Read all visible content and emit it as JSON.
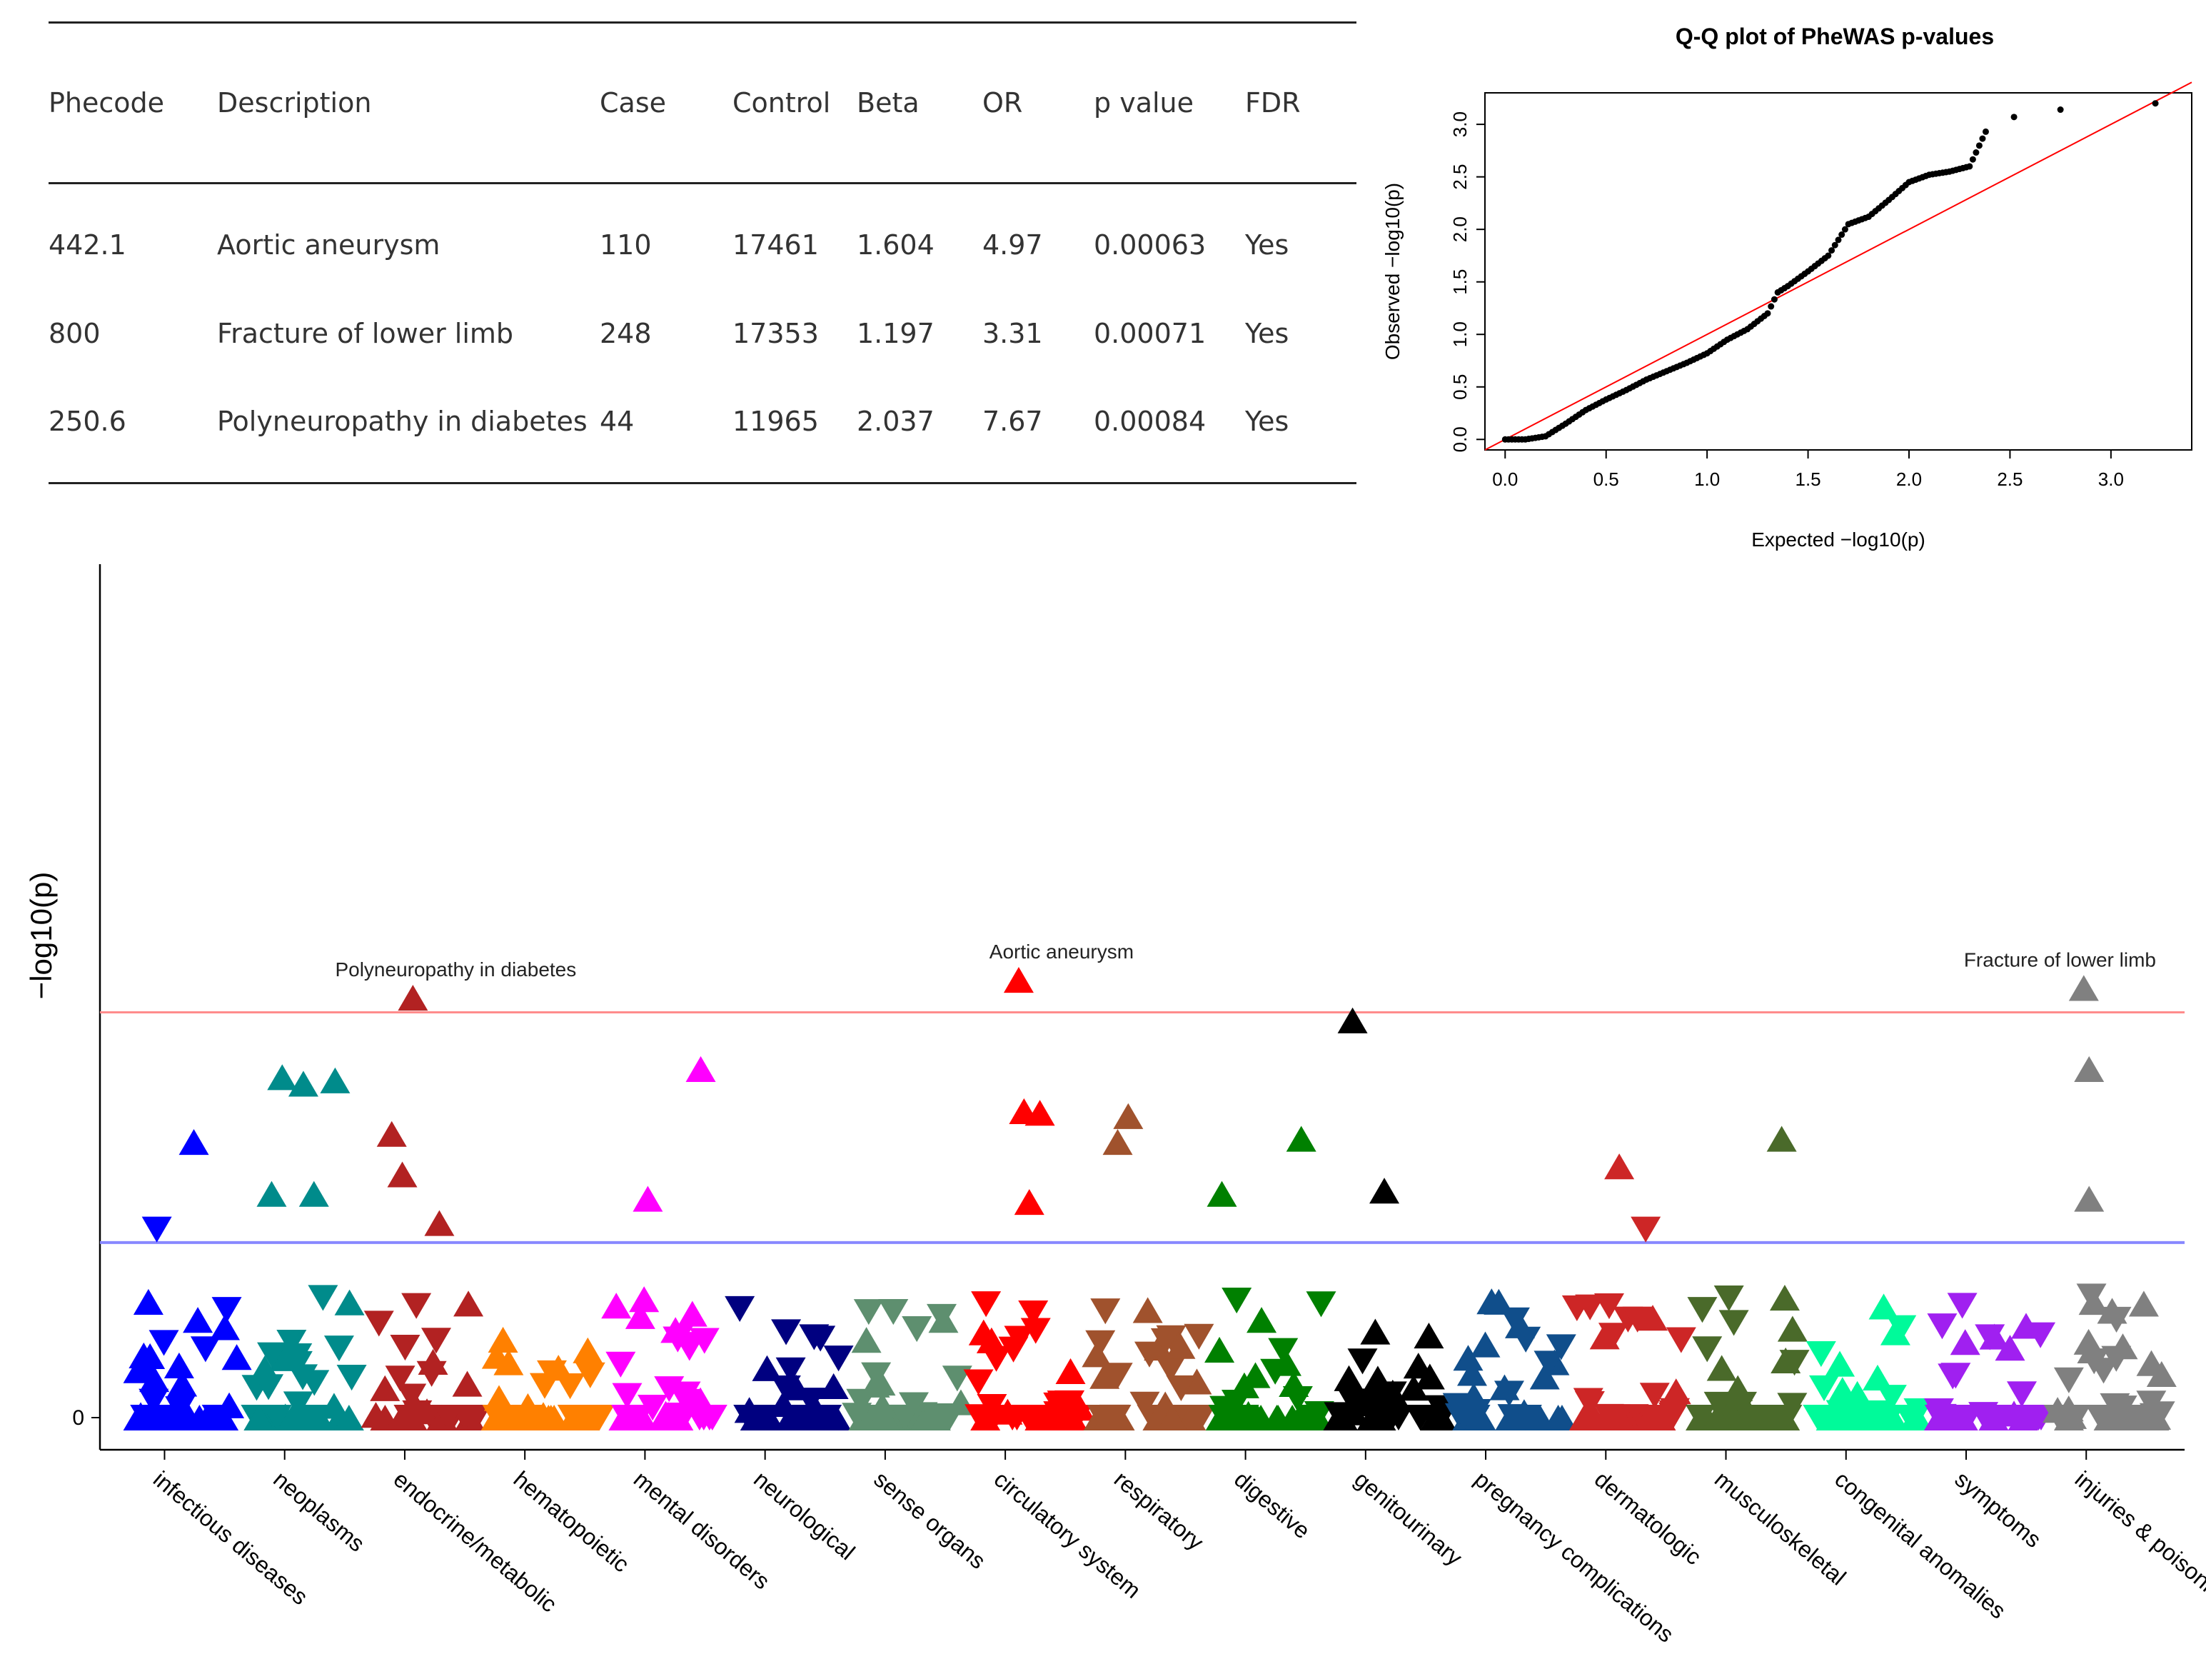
{
  "table": {
    "columns": [
      "Phecode",
      "Description",
      "Case",
      "Control",
      "Beta",
      "OR",
      "p value",
      "FDR"
    ],
    "rows": [
      {
        "phecode": "442.1",
        "description": "Aortic aneurysm",
        "case": "110",
        "control": "17461",
        "beta": "1.604",
        "or": "4.97",
        "p_value": "0.00063",
        "fdr": "Yes"
      },
      {
        "phecode": "800",
        "description": "Fracture of lower limb",
        "case": "248",
        "control": "17353",
        "beta": "1.197",
        "or": "3.31",
        "p_value": "0.00071",
        "fdr": "Yes"
      },
      {
        "phecode": "250.6",
        "description": "Polyneuropathy in diabetes",
        "case": "44",
        "control": "11965",
        "beta": "2.037",
        "or": "7.67",
        "p_value": "0.00084",
        "fdr": "Yes"
      }
    ]
  },
  "chart_data": [
    {
      "type": "scatter",
      "title": "Q-Q plot of PheWAS p-values",
      "xlabel": "Expected −log10(p)",
      "ylabel": "Observed −log10(p)",
      "xlim": [
        -0.1,
        3.4
      ],
      "ylim": [
        -0.1,
        3.3
      ],
      "xticks": [
        "0.0",
        "0.5",
        "1.0",
        "1.5",
        "2.0",
        "2.5",
        "3.0"
      ],
      "yticks": [
        "0.0",
        "0.5",
        "1.0",
        "1.5",
        "2.0",
        "2.5",
        "3.0"
      ],
      "reference_line": {
        "slope": 1,
        "intercept": 0,
        "color": "#ff0000"
      },
      "x": [
        0,
        0.1,
        0.2,
        0.3,
        0.4,
        0.5,
        0.6,
        0.7,
        0.8,
        0.9,
        1.0,
        1.1,
        1.2,
        1.3,
        1.35,
        1.4,
        1.5,
        1.6,
        1.7,
        1.8,
        1.9,
        2.0,
        2.1,
        2.2,
        2.3,
        2.38,
        2.52,
        2.75,
        3.22
      ],
      "y": [
        0,
        0,
        0.03,
        0.15,
        0.28,
        0.38,
        0.47,
        0.57,
        0.65,
        0.73,
        0.82,
        0.95,
        1.05,
        1.2,
        1.4,
        1.46,
        1.6,
        1.75,
        2.05,
        2.12,
        2.28,
        2.45,
        2.52,
        2.55,
        2.6,
        2.93,
        3.07,
        3.14,
        3.2
      ],
      "marker_color": "#000000"
    },
    {
      "type": "scatter",
      "subtype": "manhattan",
      "xlabel": "",
      "ylabel": "−log10(p)",
      "ylim": [
        0,
        5
      ],
      "yticks": [
        "0"
      ],
      "thresholds": [
        {
          "name": "fdr",
          "y": 2.5,
          "color": "#ff8c8c"
        },
        {
          "name": "nominal",
          "y": 1.08,
          "color": "#8888ff"
        }
      ],
      "categories": [
        {
          "name": "infectious diseases",
          "color": "#0000ff"
        },
        {
          "name": "neoplasms",
          "color": "#008b8b"
        },
        {
          "name": "endocrine/metabolic",
          "color": "#b22222"
        },
        {
          "name": "hematopoietic",
          "color": "#ff8000"
        },
        {
          "name": "mental disorders",
          "color": "#ff00ff"
        },
        {
          "name": "neurological",
          "color": "#000080"
        },
        {
          "name": "sense organs",
          "color": "#5e8f6f"
        },
        {
          "name": "circulatory system",
          "color": "#ff0000"
        },
        {
          "name": "respiratory",
          "color": "#a0522d"
        },
        {
          "name": "digestive",
          "color": "#008000"
        },
        {
          "name": "genitourinary",
          "color": "#000000"
        },
        {
          "name": "pregnancy complications",
          "color": "#104e8b"
        },
        {
          "name": "dermatologic",
          "color": "#cd2626"
        },
        {
          "name": "musculoskeletal",
          "color": "#4a6a2a"
        },
        {
          "name": "congenital anomalies",
          "color": "#00fa9a"
        },
        {
          "name": "symptoms",
          "color": "#a020f0"
        },
        {
          "name": "injuries & poisonings",
          "color": "#808080"
        }
      ],
      "annotations": [
        {
          "label": "Polyneuropathy in diabetes",
          "category": "endocrine/metabolic",
          "y": 2.59
        },
        {
          "label": "Aortic aneurysm",
          "category": "circulatory system",
          "y": 2.7
        },
        {
          "label": "Fracture of lower limb",
          "category": "injuries & poisonings",
          "y": 2.65
        }
      ],
      "highlighted_points": [
        {
          "category": "infectious diseases",
          "x": 0.2,
          "y": 1.16,
          "dir": "down"
        },
        {
          "category": "infectious diseases",
          "x": 0.55,
          "y": 1.7,
          "dir": "up"
        },
        {
          "category": "neoplasms",
          "x": 0.25,
          "y": 2.1,
          "dir": "up"
        },
        {
          "category": "neoplasms",
          "x": 0.45,
          "y": 2.06,
          "dir": "up"
        },
        {
          "category": "neoplasms",
          "x": 0.75,
          "y": 2.08,
          "dir": "up"
        },
        {
          "category": "neoplasms",
          "x": 0.15,
          "y": 1.38,
          "dir": "up"
        },
        {
          "category": "neoplasms",
          "x": 0.55,
          "y": 1.38,
          "dir": "up"
        },
        {
          "category": "endocrine/metabolic",
          "x": 0.35,
          "y": 2.59,
          "dir": "up"
        },
        {
          "category": "endocrine/metabolic",
          "x": 0.15,
          "y": 1.75,
          "dir": "up"
        },
        {
          "category": "endocrine/metabolic",
          "x": 0.25,
          "y": 1.5,
          "dir": "up"
        },
        {
          "category": "endocrine/metabolic",
          "x": 0.6,
          "y": 1.2,
          "dir": "up"
        },
        {
          "category": "mental disorders",
          "x": 0.8,
          "y": 2.15,
          "dir": "up"
        },
        {
          "category": "mental disorders",
          "x": 0.3,
          "y": 1.35,
          "dir": "up"
        },
        {
          "category": "circulatory system",
          "x": 0.4,
          "y": 2.7,
          "dir": "up"
        },
        {
          "category": "circulatory system",
          "x": 0.6,
          "y": 1.88,
          "dir": "up"
        },
        {
          "category": "circulatory system",
          "x": 0.45,
          "y": 1.89,
          "dir": "up"
        },
        {
          "category": "circulatory system",
          "x": 0.5,
          "y": 1.33,
          "dir": "up"
        },
        {
          "category": "respiratory",
          "x": 0.3,
          "y": 1.86,
          "dir": "up"
        },
        {
          "category": "respiratory",
          "x": 0.2,
          "y": 1.7,
          "dir": "up"
        },
        {
          "category": "digestive",
          "x": 0.8,
          "y": 1.72,
          "dir": "up"
        },
        {
          "category": "digestive",
          "x": 0.05,
          "y": 1.38,
          "dir": "up"
        },
        {
          "category": "genitourinary",
          "x": 0.15,
          "y": 2.45,
          "dir": "up"
        },
        {
          "category": "genitourinary",
          "x": 0.45,
          "y": 1.4,
          "dir": "up"
        },
        {
          "category": "dermatologic",
          "x": 0.4,
          "y": 1.55,
          "dir": "up"
        },
        {
          "category": "dermatologic",
          "x": 0.65,
          "y": 1.16,
          "dir": "down"
        },
        {
          "category": "musculoskeletal",
          "x": 0.8,
          "y": 1.72,
          "dir": "up"
        },
        {
          "category": "injuries & poisonings",
          "x": 0.25,
          "y": 2.65,
          "dir": "up"
        },
        {
          "category": "injuries & poisonings",
          "x": 0.3,
          "y": 2.15,
          "dir": "up"
        },
        {
          "category": "injuries & poisonings",
          "x": 0.3,
          "y": 1.35,
          "dir": "up"
        }
      ]
    }
  ]
}
